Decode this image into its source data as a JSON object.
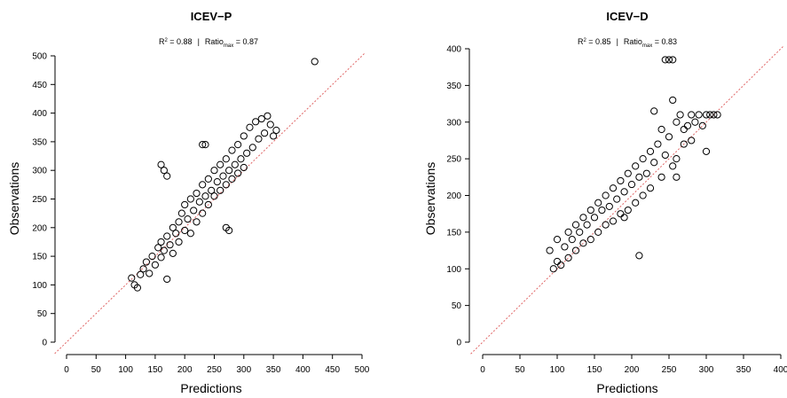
{
  "chart_data": [
    {
      "type": "scatter",
      "title": "ICEV−P",
      "subtitle": {
        "r2_prefix": "R",
        "r2_sup": "2",
        "r2_value": " = 0.88",
        "separator": "|",
        "ratio_prefix": "Ratio",
        "ratio_sub": "max",
        "ratio_value": " = 0.87"
      },
      "xlabel": "Predictions",
      "ylabel": "Observations",
      "xlim": [
        0,
        500
      ],
      "ylim": [
        0,
        500
      ],
      "xticks": [
        "0",
        "50",
        "100",
        "150",
        "200",
        "250",
        "300",
        "350",
        "400",
        "450",
        "500"
      ],
      "yticks": [
        "0",
        "50",
        "100",
        "150",
        "200",
        "250",
        "300",
        "350",
        "400",
        "450",
        "500"
      ],
      "reference_line": "y = x",
      "reference_color": "#e06666",
      "marker": "open-circle",
      "points": [
        {
          "x": 110,
          "y": 112
        },
        {
          "x": 115,
          "y": 100
        },
        {
          "x": 120,
          "y": 95
        },
        {
          "x": 125,
          "y": 118
        },
        {
          "x": 130,
          "y": 128
        },
        {
          "x": 135,
          "y": 140
        },
        {
          "x": 140,
          "y": 120
        },
        {
          "x": 145,
          "y": 150
        },
        {
          "x": 150,
          "y": 135
        },
        {
          "x": 155,
          "y": 165
        },
        {
          "x": 160,
          "y": 148
        },
        {
          "x": 160,
          "y": 175
        },
        {
          "x": 165,
          "y": 160
        },
        {
          "x": 170,
          "y": 185
        },
        {
          "x": 170,
          "y": 110
        },
        {
          "x": 175,
          "y": 170
        },
        {
          "x": 180,
          "y": 200
        },
        {
          "x": 180,
          "y": 155
        },
        {
          "x": 185,
          "y": 190
        },
        {
          "x": 190,
          "y": 210
        },
        {
          "x": 190,
          "y": 175
        },
        {
          "x": 195,
          "y": 225
        },
        {
          "x": 200,
          "y": 195
        },
        {
          "x": 200,
          "y": 240
        },
        {
          "x": 205,
          "y": 215
        },
        {
          "x": 210,
          "y": 250
        },
        {
          "x": 210,
          "y": 190
        },
        {
          "x": 215,
          "y": 230
        },
        {
          "x": 220,
          "y": 260
        },
        {
          "x": 220,
          "y": 210
        },
        {
          "x": 225,
          "y": 245
        },
        {
          "x": 230,
          "y": 275
        },
        {
          "x": 230,
          "y": 225
        },
        {
          "x": 235,
          "y": 255
        },
        {
          "x": 240,
          "y": 285
        },
        {
          "x": 240,
          "y": 240
        },
        {
          "x": 245,
          "y": 265
        },
        {
          "x": 250,
          "y": 300
        },
        {
          "x": 250,
          "y": 255
        },
        {
          "x": 255,
          "y": 280
        },
        {
          "x": 260,
          "y": 310
        },
        {
          "x": 260,
          "y": 265
        },
        {
          "x": 265,
          "y": 290
        },
        {
          "x": 270,
          "y": 320
        },
        {
          "x": 270,
          "y": 275
        },
        {
          "x": 275,
          "y": 300
        },
        {
          "x": 280,
          "y": 335
        },
        {
          "x": 280,
          "y": 285
        },
        {
          "x": 285,
          "y": 310
        },
        {
          "x": 290,
          "y": 345
        },
        {
          "x": 290,
          "y": 295
        },
        {
          "x": 295,
          "y": 320
        },
        {
          "x": 300,
          "y": 360
        },
        {
          "x": 300,
          "y": 305
        },
        {
          "x": 305,
          "y": 330
        },
        {
          "x": 310,
          "y": 375
        },
        {
          "x": 315,
          "y": 340
        },
        {
          "x": 320,
          "y": 385
        },
        {
          "x": 325,
          "y": 355
        },
        {
          "x": 330,
          "y": 390
        },
        {
          "x": 335,
          "y": 365
        },
        {
          "x": 340,
          "y": 395
        },
        {
          "x": 345,
          "y": 380
        },
        {
          "x": 350,
          "y": 360
        },
        {
          "x": 355,
          "y": 370
        },
        {
          "x": 160,
          "y": 310
        },
        {
          "x": 165,
          "y": 300
        },
        {
          "x": 170,
          "y": 290
        },
        {
          "x": 230,
          "y": 345
        },
        {
          "x": 235,
          "y": 345
        },
        {
          "x": 270,
          "y": 200
        },
        {
          "x": 275,
          "y": 195
        },
        {
          "x": 420,
          "y": 490
        }
      ]
    },
    {
      "type": "scatter",
      "title": "ICEV−D",
      "subtitle": {
        "r2_prefix": "R",
        "r2_sup": "2",
        "r2_value": " = 0.85",
        "separator": "|",
        "ratio_prefix": "Ratio",
        "ratio_sub": "max",
        "ratio_value": " = 0.83"
      },
      "xlabel": "Predictions",
      "ylabel": "Observations",
      "xlim": [
        0,
        400
      ],
      "ylim": [
        0,
        400
      ],
      "xticks": [
        "0",
        "50",
        "100",
        "150",
        "200",
        "250",
        "300",
        "350",
        "400"
      ],
      "yticks": [
        "0",
        "50",
        "100",
        "150",
        "200",
        "250",
        "300",
        "350",
        "400"
      ],
      "reference_line": "y = x",
      "reference_color": "#e06666",
      "marker": "open-circle",
      "points": [
        {
          "x": 90,
          "y": 125
        },
        {
          "x": 95,
          "y": 100
        },
        {
          "x": 100,
          "y": 110
        },
        {
          "x": 100,
          "y": 140
        },
        {
          "x": 105,
          "y": 105
        },
        {
          "x": 110,
          "y": 130
        },
        {
          "x": 115,
          "y": 150
        },
        {
          "x": 115,
          "y": 115
        },
        {
          "x": 120,
          "y": 140
        },
        {
          "x": 125,
          "y": 160
        },
        {
          "x": 125,
          "y": 125
        },
        {
          "x": 130,
          "y": 150
        },
        {
          "x": 135,
          "y": 170
        },
        {
          "x": 135,
          "y": 135
        },
        {
          "x": 140,
          "y": 160
        },
        {
          "x": 145,
          "y": 180
        },
        {
          "x": 145,
          "y": 140
        },
        {
          "x": 150,
          "y": 170
        },
        {
          "x": 155,
          "y": 190
        },
        {
          "x": 155,
          "y": 150
        },
        {
          "x": 160,
          "y": 180
        },
        {
          "x": 165,
          "y": 200
        },
        {
          "x": 165,
          "y": 160
        },
        {
          "x": 170,
          "y": 185
        },
        {
          "x": 175,
          "y": 210
        },
        {
          "x": 175,
          "y": 165
        },
        {
          "x": 180,
          "y": 195
        },
        {
          "x": 185,
          "y": 220
        },
        {
          "x": 185,
          "y": 175
        },
        {
          "x": 190,
          "y": 205
        },
        {
          "x": 195,
          "y": 230
        },
        {
          "x": 195,
          "y": 180
        },
        {
          "x": 200,
          "y": 215
        },
        {
          "x": 205,
          "y": 240
        },
        {
          "x": 205,
          "y": 190
        },
        {
          "x": 210,
          "y": 225
        },
        {
          "x": 215,
          "y": 250
        },
        {
          "x": 215,
          "y": 200
        },
        {
          "x": 220,
          "y": 230
        },
        {
          "x": 225,
          "y": 260
        },
        {
          "x": 225,
          "y": 210
        },
        {
          "x": 230,
          "y": 245
        },
        {
          "x": 235,
          "y": 270
        },
        {
          "x": 240,
          "y": 225
        },
        {
          "x": 245,
          "y": 255
        },
        {
          "x": 250,
          "y": 280
        },
        {
          "x": 255,
          "y": 240
        },
        {
          "x": 260,
          "y": 300
        },
        {
          "x": 260,
          "y": 250
        },
        {
          "x": 265,
          "y": 310
        },
        {
          "x": 270,
          "y": 270
        },
        {
          "x": 275,
          "y": 295
        },
        {
          "x": 280,
          "y": 310
        },
        {
          "x": 285,
          "y": 300
        },
        {
          "x": 290,
          "y": 310
        },
        {
          "x": 295,
          "y": 295
        },
        {
          "x": 300,
          "y": 310
        },
        {
          "x": 305,
          "y": 310
        },
        {
          "x": 310,
          "y": 310
        },
        {
          "x": 315,
          "y": 310
        },
        {
          "x": 245,
          "y": 385
        },
        {
          "x": 250,
          "y": 385
        },
        {
          "x": 255,
          "y": 385
        },
        {
          "x": 255,
          "y": 330
        },
        {
          "x": 230,
          "y": 315
        },
        {
          "x": 240,
          "y": 290
        },
        {
          "x": 210,
          "y": 118
        },
        {
          "x": 190,
          "y": 170
        },
        {
          "x": 260,
          "y": 225
        },
        {
          "x": 300,
          "y": 260
        },
        {
          "x": 280,
          "y": 275
        },
        {
          "x": 270,
          "y": 290
        }
      ]
    }
  ]
}
